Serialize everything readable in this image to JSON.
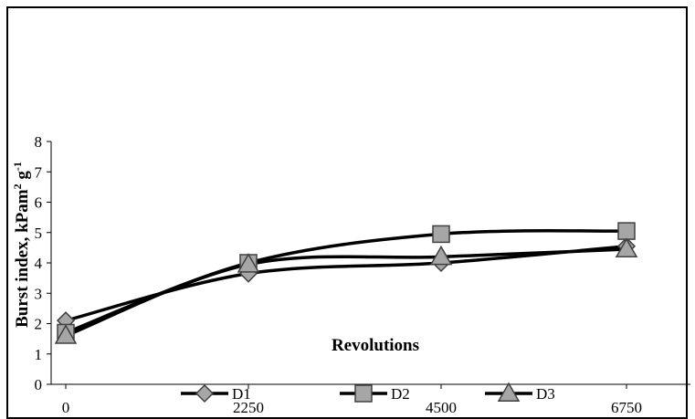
{
  "chart_data": {
    "type": "line",
    "title": "",
    "xlabel": "Revolutions",
    "ylabel": "Burst index, kPam",
    "ylabel_sup1": "2",
    "ylabel_mid": " g",
    "ylabel_sup2": "-1",
    "x": [
      0,
      2250,
      4500,
      6750
    ],
    "x_tick_labels": [
      "0",
      "2250",
      "4500",
      "6750"
    ],
    "y_tick_labels": [
      "0",
      "1",
      "2",
      "3",
      "4",
      "5",
      "6",
      "7",
      "8"
    ],
    "ylim": [
      0,
      8
    ],
    "grid": false,
    "legend_position": "bottom",
    "series": [
      {
        "name": "D1",
        "marker": "diamond",
        "values": [
          2.1,
          3.65,
          4.0,
          4.55
        ]
      },
      {
        "name": "D2",
        "marker": "square",
        "values": [
          1.7,
          4.0,
          4.95,
          5.05
        ]
      },
      {
        "name": "D3",
        "marker": "triangle",
        "values": [
          1.6,
          3.95,
          4.2,
          4.45
        ]
      }
    ],
    "colors": {
      "line": "#000000",
      "marker_fill": "#a6a6a6",
      "marker_stroke": "#404040"
    }
  }
}
